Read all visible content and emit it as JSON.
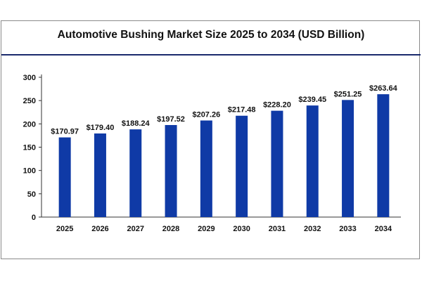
{
  "chart_data": {
    "type": "bar",
    "title": "Automotive Bushing Market Size 2025 to 2034 (USD Billion)",
    "xlabel": "",
    "ylabel": "",
    "categories": [
      "2025",
      "2026",
      "2027",
      "2028",
      "2029",
      "2030",
      "2031",
      "2032",
      "2033",
      "2034"
    ],
    "values": [
      170.97,
      179.4,
      188.24,
      197.52,
      207.26,
      217.48,
      228.2,
      239.45,
      251.25,
      263.64
    ],
    "data_labels": [
      "$170.97",
      "$179.40",
      "$188.24",
      "$197.52",
      "$207.26",
      "$217.48",
      "$228.20",
      "$239.45",
      "$251.25",
      "$263.64"
    ],
    "ylim": [
      0,
      300
    ],
    "yticks": [
      0,
      50,
      100,
      150,
      200,
      250,
      300
    ],
    "grid": false,
    "legend": "none",
    "bar_color": "#0f3aa6"
  }
}
